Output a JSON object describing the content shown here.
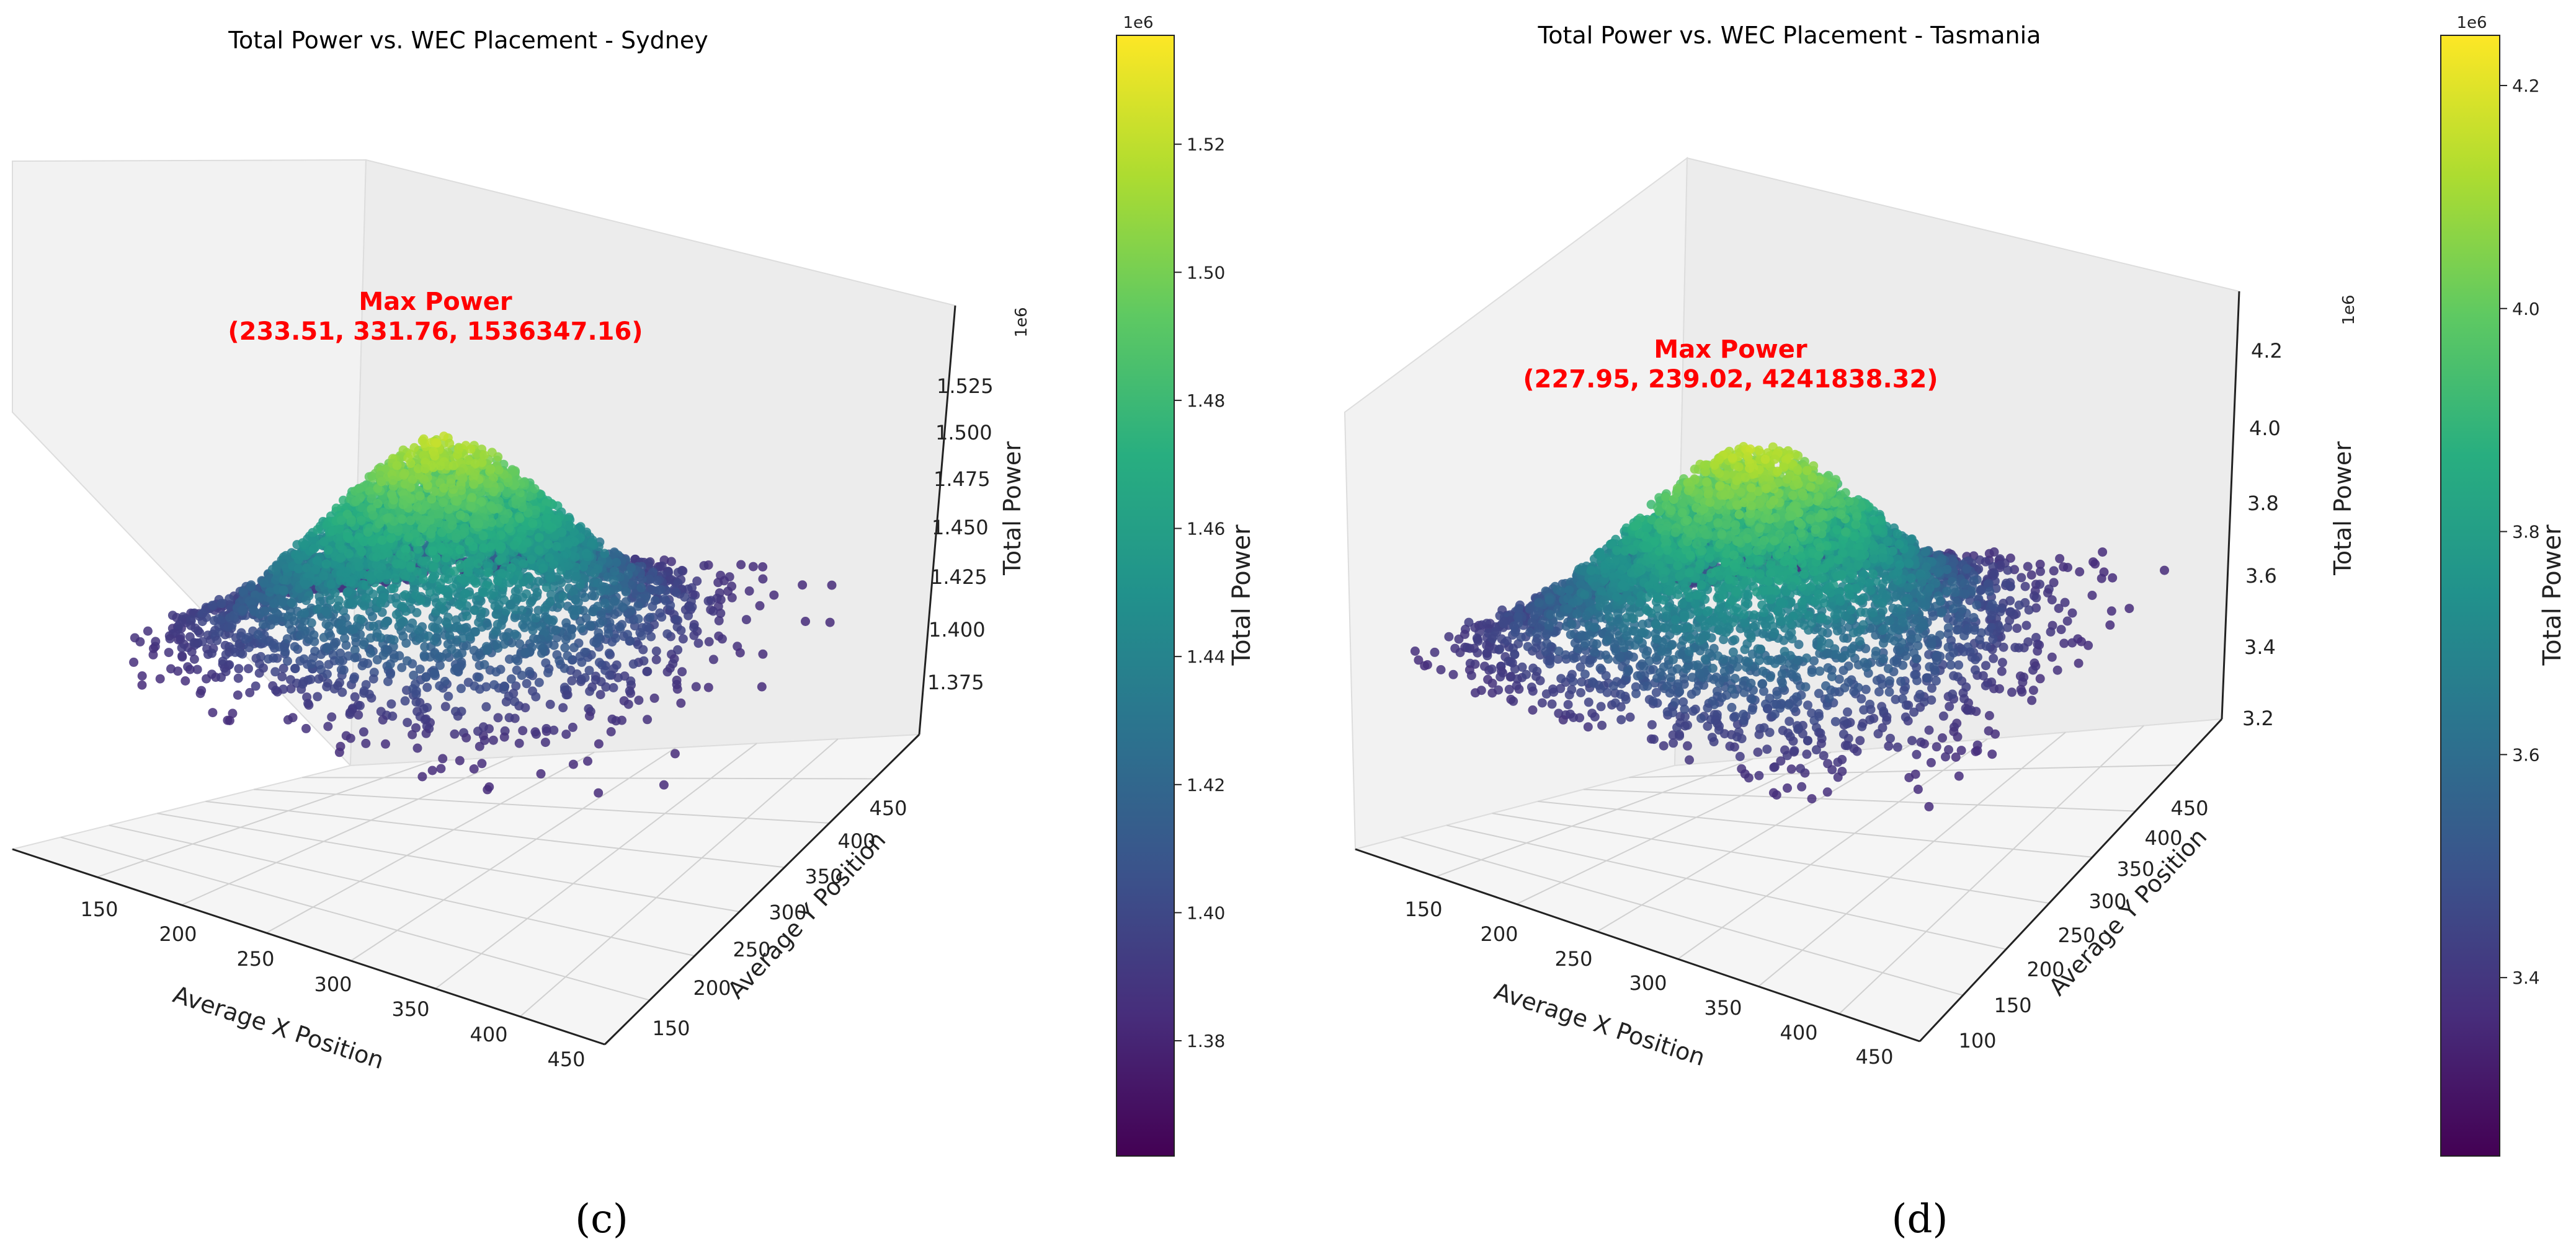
{
  "chart_data": [
    {
      "type": "scatter3d",
      "title": "Total Power vs. WEC Placement - Sydney",
      "xlabel": "Average X Position",
      "ylabel": "Average Y Position",
      "zlabel": "Total Power",
      "z_offset_label": "1e6",
      "x_ticks": [
        150,
        200,
        250,
        300,
        350,
        400,
        450
      ],
      "y_ticks": [
        150,
        200,
        250,
        300,
        350,
        400,
        450
      ],
      "z_ticks": [
        "1.375",
        "1.400",
        "1.425",
        "1.450",
        "1.475",
        "1.500",
        "1.525"
      ],
      "xlim": [
        110,
        470
      ],
      "ylim": [
        120,
        470
      ],
      "zlim": [
        1.36,
        1.54
      ],
      "colorbar": {
        "label": "Total Power",
        "offset_label": "1e6",
        "ticks": [
          "1.38",
          "1.40",
          "1.42",
          "1.44",
          "1.46",
          "1.48",
          "1.50",
          "1.52"
        ],
        "range": [
          1.362,
          1.537
        ],
        "colormap": "viridis"
      },
      "annotation": {
        "title": "Max Power",
        "text": "(233.51, 331.76, 1536347.16)",
        "x": 233.51,
        "y": 331.76,
        "z": 1536347.16,
        "color": "#ff0000"
      },
      "caption": "(c)"
    },
    {
      "type": "scatter3d",
      "title": "Total Power vs. WEC Placement - Tasmania",
      "xlabel": "Average X Position",
      "ylabel": "Average Y Position",
      "zlabel": "Total Power",
      "z_offset_label": "1e6",
      "x_ticks": [
        150,
        200,
        250,
        300,
        350,
        400,
        450
      ],
      "y_ticks": [
        100,
        150,
        200,
        250,
        300,
        350,
        400,
        450
      ],
      "z_ticks": [
        "3.2",
        "3.4",
        "3.6",
        "3.8",
        "4.0",
        "4.2"
      ],
      "xlim": [
        110,
        470
      ],
      "ylim": [
        80,
        470
      ],
      "zlim": [
        3.2,
        4.3
      ],
      "colorbar": {
        "label": "Total Power",
        "offset_label": "1e6",
        "ticks": [
          "3.4",
          "3.6",
          "3.8",
          "4.0",
          "4.2"
        ],
        "range": [
          3.24,
          4.245
        ],
        "colormap": "viridis"
      },
      "annotation": {
        "title": "Max Power",
        "text": "(227.95, 239.02, 4241838.32)",
        "x": 227.95,
        "y": 239.02,
        "z": 4241838.32,
        "color": "#ff0000"
      },
      "caption": "(d)"
    }
  ]
}
